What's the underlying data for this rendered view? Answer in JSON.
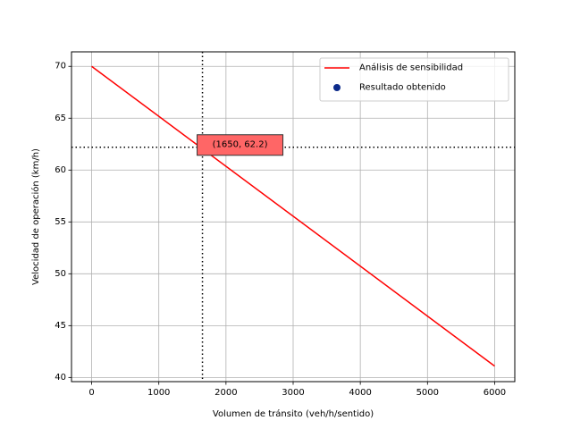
{
  "chart_data": {
    "type": "line",
    "title": "",
    "xlabel": "Volumen de tránsito (veh/h/sentido)",
    "ylabel": "Velocidad de operación (km/h)",
    "xlim": [
      -300,
      6300
    ],
    "ylim": [
      39.6,
      71.4
    ],
    "xticks": [
      0,
      1000,
      2000,
      3000,
      4000,
      5000,
      6000
    ],
    "yticks": [
      40,
      45,
      50,
      55,
      60,
      65,
      70
    ],
    "grid": true,
    "legend_position": "top-right",
    "series": [
      {
        "name": "Análisis de sensibilidad",
        "type": "line",
        "color": "#ff0000",
        "x": [
          0,
          6000
        ],
        "y": [
          70.0,
          41.1
        ]
      },
      {
        "name": "Resultado obtenido",
        "type": "scatter",
        "color": "#0c2a8a",
        "x": [
          1650
        ],
        "y": [
          62.2
        ]
      }
    ],
    "reference_lines": [
      {
        "orientation": "vertical",
        "value": 1650,
        "style": "dotted",
        "color": "#000000"
      },
      {
        "orientation": "horizontal",
        "value": 62.2,
        "style": "dotted",
        "color": "#000000"
      }
    ],
    "annotation": {
      "text": "(1650, 62.2)",
      "x": 1650,
      "y": 62.2,
      "box_color": "#ff6666"
    }
  }
}
